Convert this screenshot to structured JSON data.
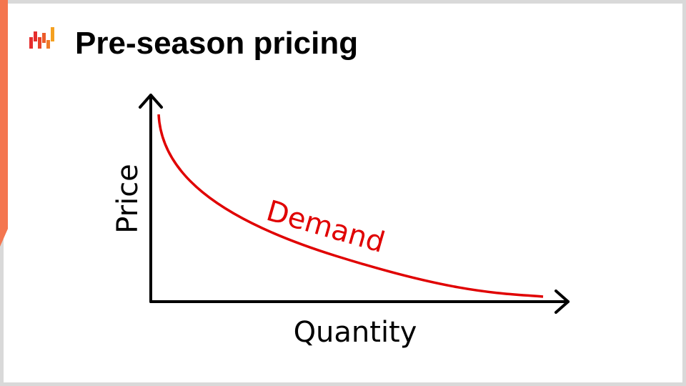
{
  "header": {
    "title": "Pre-season pricing"
  },
  "diagram": {
    "y_axis_label": "Price",
    "x_axis_label": "Quantity",
    "curve_label": "Demand"
  }
}
